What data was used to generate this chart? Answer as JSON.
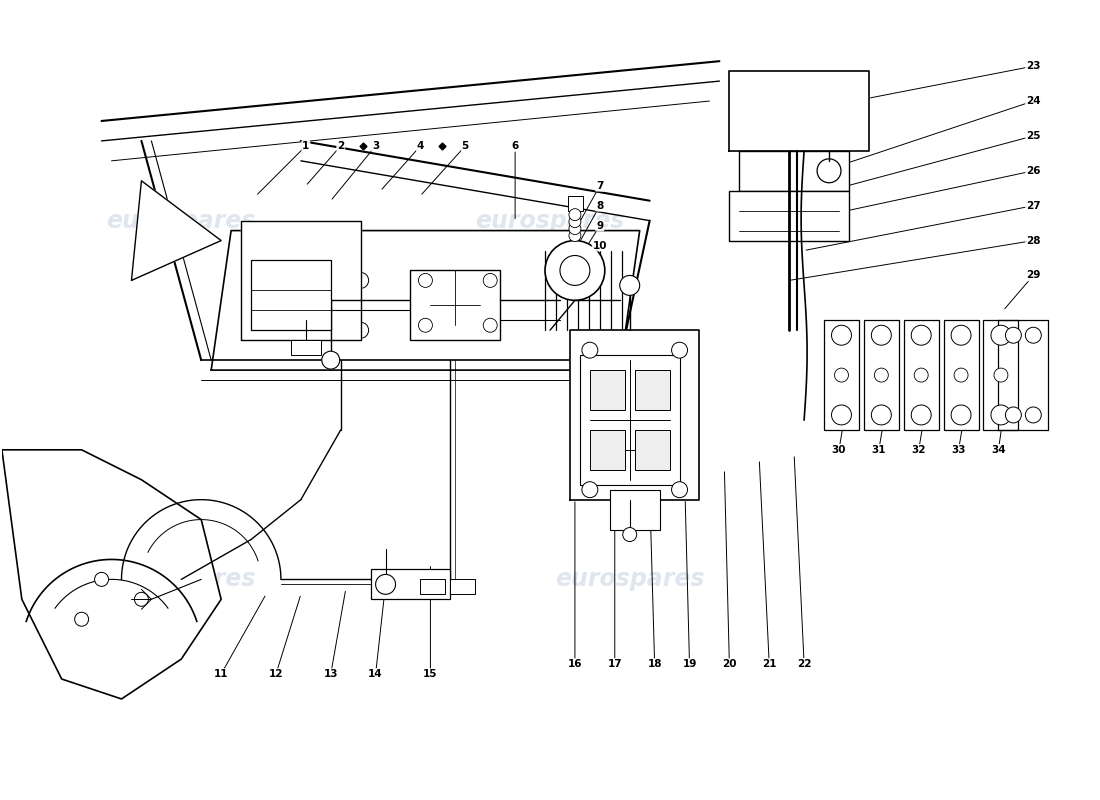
{
  "background_color": "#ffffff",
  "line_color": "#000000",
  "wm_color": "#b8c8d8",
  "figsize": [
    11.0,
    8.0
  ],
  "dpi": 100,
  "xlim": [
    0,
    110
  ],
  "ylim": [
    0,
    80
  ],
  "watermarks": [
    [
      18,
      58,
      "eurospares"
    ],
    [
      55,
      58,
      "eurospares"
    ],
    [
      18,
      22,
      "eurospares"
    ],
    [
      63,
      22,
      "eurospares"
    ]
  ],
  "part_labels": [
    [
      1,
      30.5,
      65.5,
      25.5,
      60.5
    ],
    [
      2,
      34.0,
      65.5,
      30.5,
      61.5
    ],
    [
      3,
      37.5,
      65.5,
      33.0,
      60.0
    ],
    [
      4,
      42.0,
      65.5,
      38.0,
      61.0
    ],
    [
      5,
      46.5,
      65.5,
      42.0,
      60.5
    ],
    [
      6,
      51.5,
      65.5,
      51.5,
      58.0
    ],
    [
      7,
      60.0,
      61.5,
      57.5,
      57.0
    ],
    [
      8,
      60.0,
      59.5,
      57.5,
      55.0
    ],
    [
      9,
      60.0,
      57.5,
      57.5,
      53.5
    ],
    [
      10,
      60.0,
      55.5,
      57.5,
      52.0
    ],
    [
      11,
      22.0,
      12.5,
      26.5,
      20.5
    ],
    [
      12,
      27.5,
      12.5,
      30.0,
      20.5
    ],
    [
      13,
      33.0,
      12.5,
      34.5,
      21.0
    ],
    [
      14,
      37.5,
      12.5,
      38.5,
      21.5
    ],
    [
      15,
      43.0,
      12.5,
      43.0,
      23.5
    ],
    [
      16,
      57.5,
      13.5,
      57.5,
      30.0
    ],
    [
      17,
      61.5,
      13.5,
      61.5,
      30.5
    ],
    [
      18,
      65.5,
      13.5,
      65.0,
      31.0
    ],
    [
      19,
      69.0,
      13.5,
      68.5,
      32.5
    ],
    [
      20,
      73.0,
      13.5,
      72.5,
      33.0
    ],
    [
      21,
      77.0,
      13.5,
      76.0,
      34.0
    ],
    [
      22,
      80.5,
      13.5,
      79.5,
      34.5
    ],
    [
      23,
      103.5,
      73.5,
      85.5,
      70.0
    ],
    [
      24,
      103.5,
      70.0,
      82.5,
      63.0
    ],
    [
      25,
      103.5,
      66.5,
      83.0,
      61.0
    ],
    [
      26,
      103.5,
      63.0,
      82.5,
      58.5
    ],
    [
      27,
      103.5,
      59.5,
      80.5,
      55.0
    ],
    [
      28,
      103.5,
      56.0,
      79.0,
      52.0
    ],
    [
      29,
      103.5,
      52.5,
      100.5,
      49.0
    ],
    [
      30,
      84.0,
      35.0,
      84.5,
      38.0
    ],
    [
      31,
      88.0,
      35.0,
      88.5,
      38.0
    ],
    [
      32,
      92.0,
      35.0,
      92.5,
      38.0
    ],
    [
      33,
      96.0,
      35.0,
      96.5,
      38.0
    ],
    [
      34,
      100.0,
      35.0,
      100.5,
      38.5
    ]
  ],
  "diamond_labels": [
    2,
    4
  ]
}
